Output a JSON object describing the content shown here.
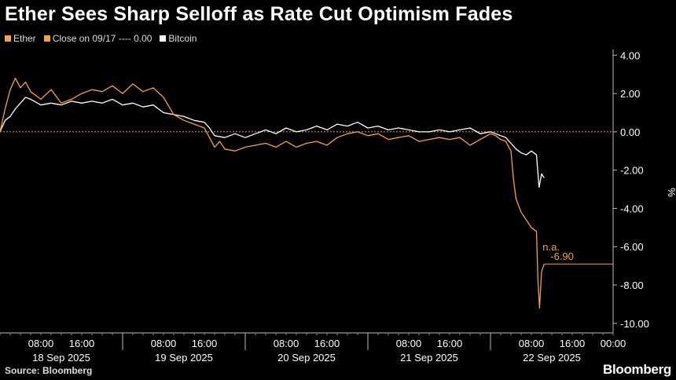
{
  "title": "Ether Sees Sharp Selloff as Rate Cut Optimism Fades",
  "legend": [
    {
      "label": "Ether",
      "color": "#f5a04a"
    },
    {
      "label": "Close on 09/17 ---- 0.00",
      "color": "#f5a04a"
    },
    {
      "label": "Bitcoin",
      "color": "#ffffff"
    }
  ],
  "source": "Source: Bloomberg",
  "brand": "Bloomberg",
  "chart_data": {
    "type": "line",
    "title": "Ether Sees Sharp Selloff as Rate Cut Optimism Fades",
    "ylabel": "%",
    "ylim": [
      -10.5,
      4.3
    ],
    "yticks": [
      4.0,
      2.0,
      0.0,
      -2.0,
      -4.0,
      -6.0,
      -8.0,
      -10.0
    ],
    "ytick_labels": [
      "4.00",
      "2.00",
      "0.00",
      "-2.00",
      "-4.00",
      "-6.00",
      "-8.00",
      "-10.00"
    ],
    "xlim": [
      0,
      120
    ],
    "x_unit": "hours since 18 Sep 2025 00:00",
    "xticks": [
      {
        "x": 8,
        "label": "08:00"
      },
      {
        "x": 16,
        "label": "16:00"
      },
      {
        "x": 32,
        "label": "08:00"
      },
      {
        "x": 40,
        "label": "16:00"
      },
      {
        "x": 56,
        "label": "08:00"
      },
      {
        "x": 64,
        "label": "16:00"
      },
      {
        "x": 80,
        "label": "08:00"
      },
      {
        "x": 88,
        "label": "16:00"
      },
      {
        "x": 104,
        "label": "08:00"
      },
      {
        "x": 112,
        "label": "16:00"
      },
      {
        "x": 120,
        "label": "00:00"
      }
    ],
    "day_labels": [
      {
        "x": 12,
        "label": "18 Sep 2025"
      },
      {
        "x": 36,
        "label": "19 Sep 2025"
      },
      {
        "x": 60,
        "label": "20 Sep 2025"
      },
      {
        "x": 84,
        "label": "21 Sep 2025"
      },
      {
        "x": 108,
        "label": "22 Sep 2025"
      }
    ],
    "day_separators": [
      24,
      48,
      72,
      96
    ],
    "reference_line": {
      "value": 0.0,
      "label": "Close on 09/17",
      "color": "#f5a04a"
    },
    "series": [
      {
        "name": "Ether",
        "color": "#f5a04a",
        "x": [
          0,
          1,
          2,
          3,
          4,
          5,
          6,
          8,
          10,
          12,
          14,
          16,
          18,
          20,
          22,
          24,
          26,
          28,
          30,
          32,
          34,
          36,
          38,
          40,
          41,
          42,
          43,
          44,
          46,
          48,
          50,
          52,
          54,
          56,
          58,
          60,
          62,
          64,
          66,
          68,
          70,
          72,
          74,
          76,
          78,
          80,
          82,
          84,
          86,
          88,
          90,
          92,
          94,
          96,
          97,
          98,
          99,
          100,
          100.5,
          101,
          102,
          103,
          104,
          105,
          105.3,
          105.6,
          106,
          106.5
        ],
        "y": [
          0.0,
          1.2,
          2.2,
          2.8,
          2.3,
          2.6,
          2.1,
          1.7,
          2.2,
          1.5,
          1.7,
          2.0,
          2.2,
          2.1,
          2.4,
          2.0,
          2.5,
          2.1,
          2.3,
          1.8,
          0.9,
          0.6,
          0.4,
          0.2,
          -0.3,
          -0.8,
          -0.5,
          -0.9,
          -1.0,
          -0.8,
          -0.7,
          -0.6,
          -0.8,
          -0.5,
          -0.8,
          -0.6,
          -0.5,
          -0.7,
          -0.3,
          -0.1,
          0.0,
          -0.2,
          -0.1,
          -0.4,
          -0.3,
          -0.2,
          -0.5,
          -0.4,
          -0.3,
          -0.4,
          -0.3,
          -0.7,
          -0.4,
          -0.1,
          -0.2,
          -0.4,
          -0.5,
          -1.0,
          -2.5,
          -3.5,
          -4.2,
          -4.6,
          -5.0,
          -5.2,
          -7.8,
          -9.2,
          -7.3,
          -6.9
        ],
        "end_label": "-6.90"
      },
      {
        "name": "Bitcoin",
        "color": "#ffffff",
        "x": [
          0,
          1,
          2,
          3,
          4,
          5,
          6,
          8,
          10,
          12,
          14,
          16,
          18,
          20,
          22,
          24,
          26,
          28,
          30,
          32,
          34,
          36,
          38,
          40,
          41,
          42,
          44,
          46,
          48,
          50,
          52,
          54,
          56,
          58,
          60,
          62,
          64,
          66,
          68,
          70,
          72,
          74,
          76,
          78,
          80,
          82,
          84,
          86,
          88,
          90,
          92,
          94,
          96,
          98,
          99,
          100,
          101,
          102,
          103,
          104,
          105,
          105.5,
          106,
          106.5
        ],
        "y": [
          0.0,
          0.6,
          0.8,
          1.2,
          1.5,
          1.8,
          1.7,
          1.4,
          1.5,
          1.4,
          1.6,
          1.5,
          1.6,
          1.5,
          1.7,
          1.4,
          1.5,
          1.3,
          1.4,
          1.0,
          0.9,
          0.8,
          0.6,
          0.5,
          0.2,
          -0.2,
          -0.3,
          -0.1,
          -0.3,
          -0.1,
          0.1,
          -0.1,
          0.2,
          0.0,
          0.1,
          0.3,
          0.1,
          0.4,
          0.3,
          0.5,
          0.2,
          0.3,
          0.1,
          0.2,
          0.1,
          0.0,
          0.0,
          0.1,
          0.0,
          0.1,
          0.2,
          -0.1,
          0.0,
          -0.2,
          -0.3,
          -0.6,
          -0.9,
          -1.1,
          -1.2,
          -1.0,
          -1.2,
          -2.9,
          -2.2,
          -2.4
        ]
      }
    ],
    "annotations": [
      {
        "text": "n.a.",
        "x": 106.2,
        "y": -6.2,
        "color": "#f5a04a"
      }
    ]
  }
}
